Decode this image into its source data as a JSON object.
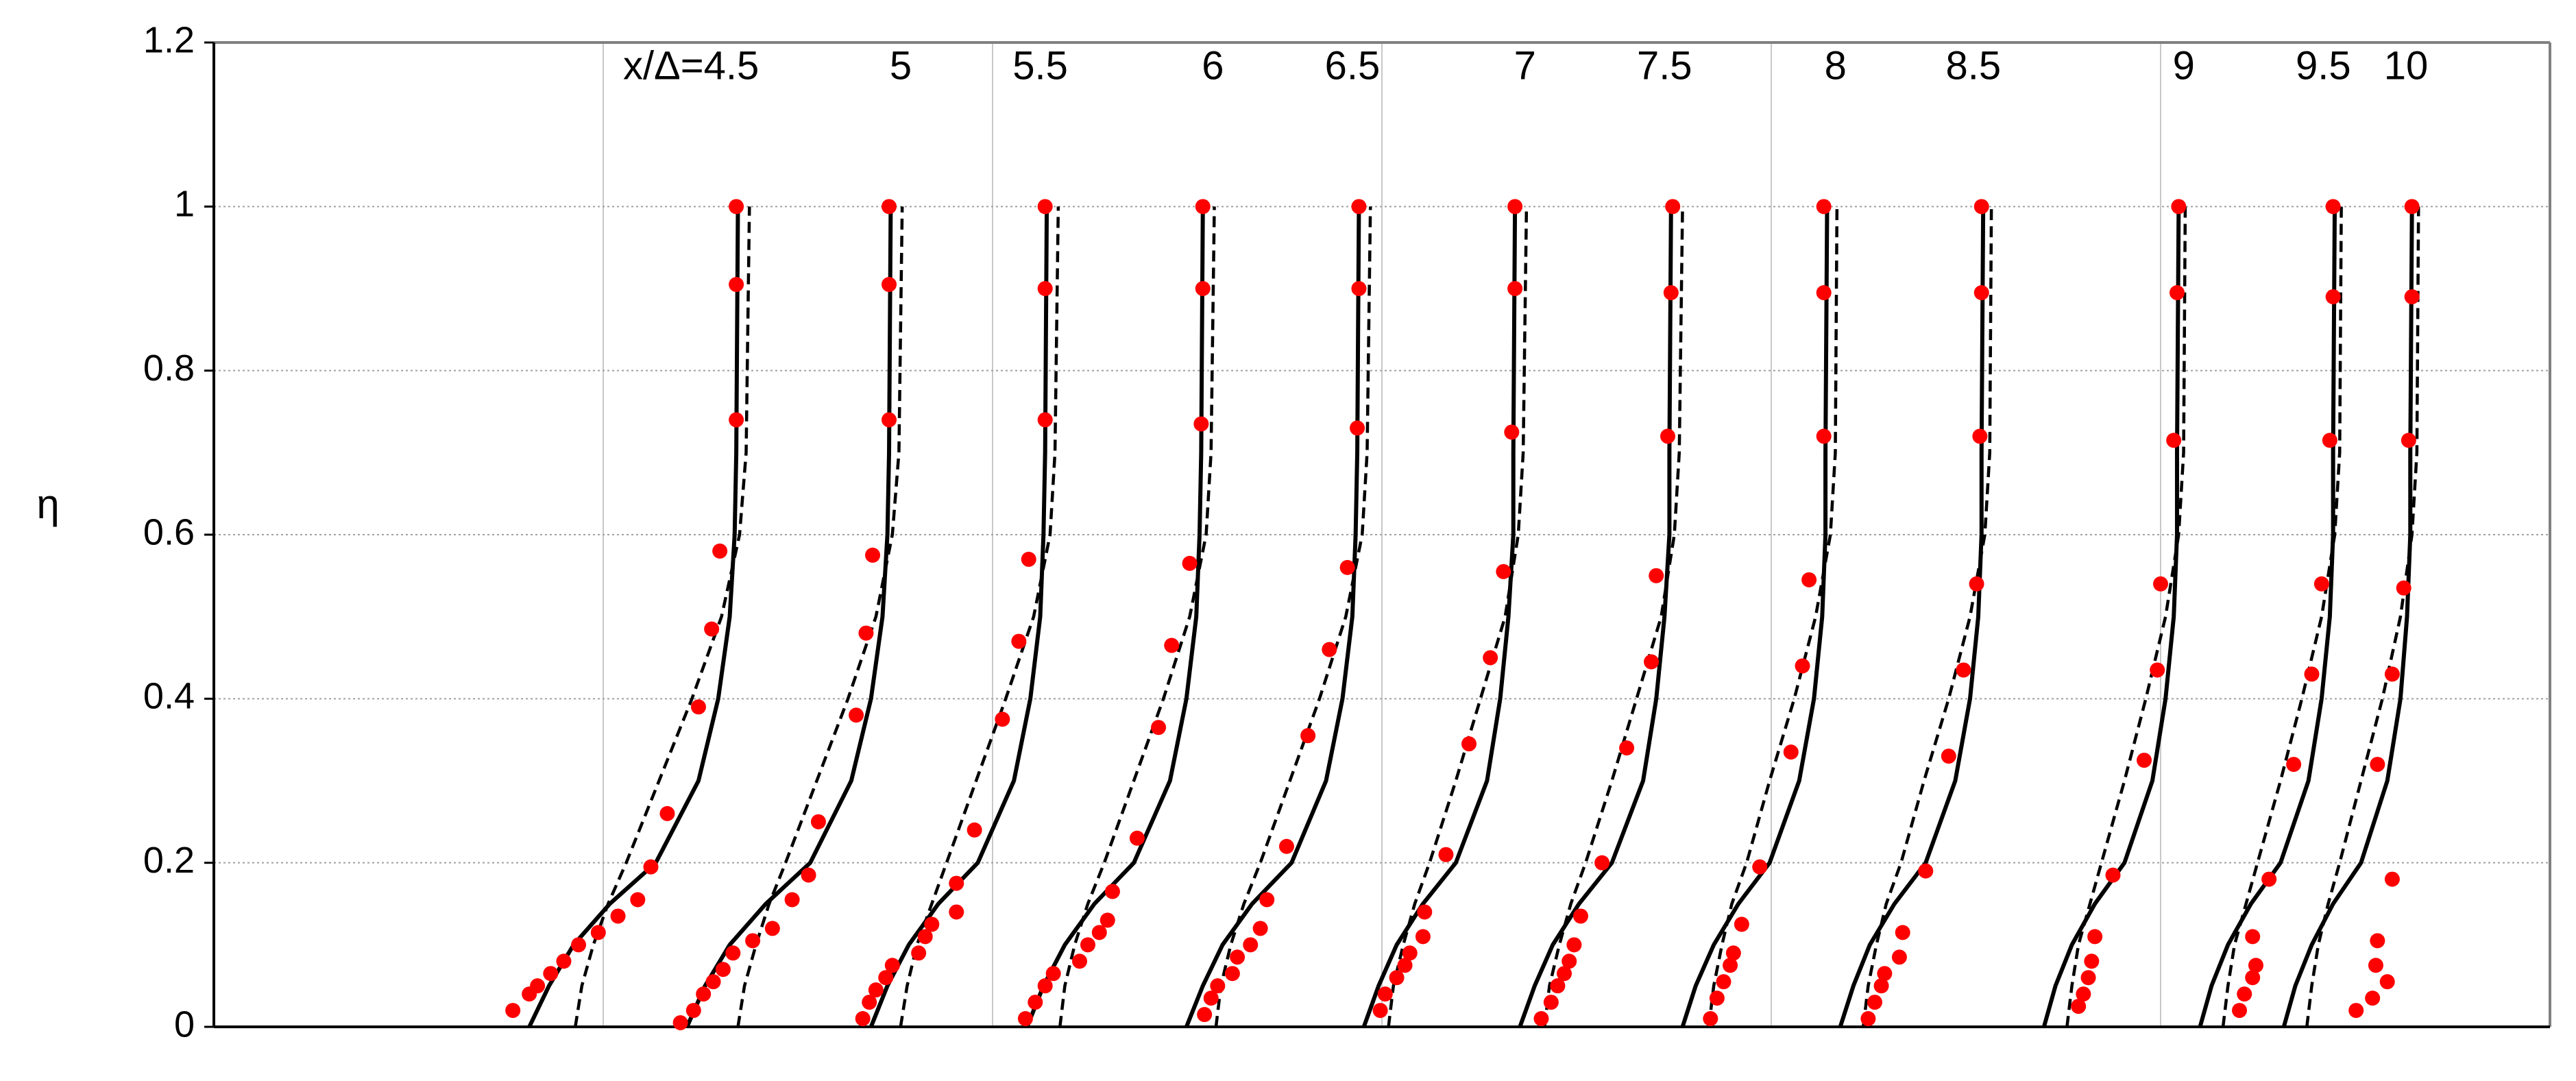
{
  "chart_data": {
    "type": "profiles",
    "ylabel": "η",
    "ylim": [
      0,
      1.2
    ],
    "yticks": [
      0,
      0.2,
      0.4,
      0.6,
      0.8,
      1,
      1.2
    ],
    "xlim": [
      0,
      1422
    ],
    "xgrid": [
      237,
      474,
      711,
      948,
      1185
    ],
    "grid": true,
    "line_color": "#000000",
    "point_color": "#ff0000",
    "eta": [
      0,
      0.05,
      0.1,
      0.15,
      0.2,
      0.3,
      0.4,
      0.5,
      0.6,
      0.7,
      1.0
    ],
    "profiles": [
      {
        "label": "x/Δ=4.5",
        "solid": [
          192,
          204,
          219,
          241,
          269,
          295,
          307,
          314,
          317,
          318,
          319
        ],
        "dashed": [
          220,
          224,
          231,
          240,
          251,
          271,
          291,
          309,
          320,
          324,
          326
        ],
        "points_x": [
          182,
          192,
          197,
          205,
          213,
          222,
          234,
          246,
          258,
          266,
          276,
          295,
          303,
          308,
          318,
          318,
          318
        ],
        "points_y": [
          0.02,
          0.04,
          0.05,
          0.065,
          0.08,
          0.1,
          0.115,
          0.135,
          0.155,
          0.195,
          0.26,
          0.39,
          0.485,
          0.58,
          0.74,
          0.905,
          1
        ]
      },
      {
        "label": "5",
        "solid": [
          288,
          299,
          314,
          336,
          363,
          388,
          400,
          407,
          410,
          411,
          412
        ],
        "dashed": [
          319,
          323,
          330,
          338,
          348,
          367,
          386,
          403,
          413,
          417,
          419
        ],
        "points_x": [
          284,
          292,
          298,
          304,
          310,
          316,
          328,
          340,
          352,
          362,
          368,
          391,
          397,
          401,
          411,
          411,
          411
        ],
        "points_y": [
          0.005,
          0.02,
          0.04,
          0.055,
          0.07,
          0.09,
          0.105,
          0.12,
          0.155,
          0.185,
          0.25,
          0.38,
          0.48,
          0.575,
          0.74,
          0.905,
          1
        ]
      },
      {
        "label": "5.5",
        "solid": [
          400,
          410,
          423,
          441,
          465,
          487,
          497,
          503,
          505,
          506,
          507
        ],
        "dashed": [
          418,
          422,
          428,
          437,
          446,
          464,
          482,
          499,
          509,
          512,
          514
        ],
        "points_x": [
          395,
          399,
          403,
          409,
          413,
          429,
          433,
          437,
          452,
          452,
          463,
          480,
          490,
          496,
          506,
          506,
          506
        ],
        "points_y": [
          0.01,
          0.03,
          0.045,
          0.06,
          0.075,
          0.09,
          0.11,
          0.125,
          0.14,
          0.175,
          0.24,
          0.375,
          0.47,
          0.57,
          0.74,
          0.9,
          1
        ]
      },
      {
        "label": "6",
        "solid": [
          495,
          505,
          518,
          536,
          560,
          582,
          592,
          598,
          600,
          601,
          602
        ],
        "dashed": [
          515,
          518,
          524,
          532,
          542,
          560,
          578,
          594,
          604,
          607,
          609
        ],
        "points_x": [
          494,
          500,
          506,
          511,
          527,
          532,
          539,
          544,
          547,
          562,
          575,
          583,
          594,
          601,
          602,
          602
        ],
        "points_y": [
          0.01,
          0.03,
          0.05,
          0.065,
          0.08,
          0.1,
          0.115,
          0.13,
          0.165,
          0.23,
          0.365,
          0.465,
          0.565,
          0.735,
          0.9,
          1
        ]
      },
      {
        "label": "6.5",
        "solid": [
          592,
          602,
          614,
          632,
          656,
          677,
          687,
          693,
          695,
          696,
          697
        ],
        "dashed": [
          610,
          613,
          619,
          627,
          637,
          655,
          673,
          689,
          699,
          702,
          704
        ],
        "points_x": [
          603,
          607,
          611,
          620,
          623,
          631,
          637,
          641,
          653,
          666,
          679,
          690,
          696,
          697,
          697
        ],
        "points_y": [
          0.015,
          0.035,
          0.05,
          0.065,
          0.085,
          0.1,
          0.12,
          0.155,
          0.22,
          0.355,
          0.46,
          0.56,
          0.73,
          0.9,
          1
        ]
      },
      {
        "label": "7",
        "solid": [
          700,
          709,
          720,
          736,
          756,
          775,
          783,
          788,
          791,
          791,
          792
        ],
        "dashed": [
          715,
          718,
          724,
          731,
          740,
          756,
          771,
          786,
          794,
          797,
          799
        ],
        "points_x": [
          710,
          713,
          720,
          725,
          728,
          736,
          737,
          750,
          764,
          777,
          785,
          790,
          792,
          792
        ],
        "points_y": [
          0.02,
          0.04,
          0.06,
          0.075,
          0.09,
          0.11,
          0.14,
          0.21,
          0.345,
          0.45,
          0.555,
          0.725,
          0.9,
          1
        ]
      },
      {
        "label": "7.5",
        "solid": [
          795,
          804,
          815,
          831,
          851,
          870,
          878,
          883,
          886,
          886,
          887
        ],
        "dashed": [
          810,
          813,
          819,
          826,
          835,
          851,
          866,
          881,
          889,
          892,
          894
        ],
        "points_x": [
          808,
          814,
          818,
          822,
          825,
          828,
          832,
          845,
          860,
          875,
          878,
          885,
          887,
          888
        ],
        "points_y": [
          0.01,
          0.03,
          0.05,
          0.065,
          0.08,
          0.1,
          0.135,
          0.2,
          0.34,
          0.445,
          0.55,
          0.72,
          0.895,
          1
        ]
      },
      {
        "label": "8",
        "solid": [
          894,
          902,
          913,
          928,
          947,
          965,
          974,
          979,
          981,
          981,
          982
        ],
        "dashed": [
          910,
          913,
          918,
          924,
          933,
          947,
          962,
          975,
          984,
          987,
          988
        ],
        "points_x": [
          911,
          915,
          919,
          923,
          925,
          930,
          941,
          960,
          967,
          971,
          980,
          980,
          980
        ],
        "points_y": [
          0.01,
          0.035,
          0.055,
          0.075,
          0.09,
          0.125,
          0.195,
          0.335,
          0.44,
          0.545,
          0.72,
          0.895,
          1
        ]
      },
      {
        "label": "8.5",
        "solid": [
          990,
          998,
          1008,
          1023,
          1042,
          1060,
          1069,
          1074,
          1076,
          1076,
          1077
        ],
        "dashed": [
          1004,
          1007,
          1012,
          1018,
          1027,
          1041,
          1056,
          1069,
          1078,
          1081,
          1082
        ],
        "points_x": [
          1007,
          1011,
          1015,
          1017,
          1026,
          1028,
          1042,
          1056,
          1065,
          1073,
          1075,
          1076,
          1076
        ],
        "points_y": [
          0.01,
          0.03,
          0.05,
          0.065,
          0.085,
          0.115,
          0.19,
          0.33,
          0.435,
          0.54,
          0.72,
          0.895,
          1
        ]
      },
      {
        "label": "9",
        "solid": [
          1114,
          1121,
          1131,
          1145,
          1163,
          1180,
          1188,
          1193,
          1195,
          1195,
          1196
        ],
        "dashed": [
          1128,
          1131,
          1135,
          1142,
          1149,
          1163,
          1176,
          1188,
          1196,
          1199,
          1200
        ],
        "points_x": [
          1135,
          1138,
          1141,
          1143,
          1145,
          1156,
          1175,
          1183,
          1185,
          1193,
          1195,
          1196
        ],
        "points_y": [
          0.025,
          0.04,
          0.06,
          0.08,
          0.11,
          0.185,
          0.325,
          0.435,
          0.54,
          0.715,
          0.895,
          1
        ]
      },
      {
        "label": "9.5",
        "solid": [
          1209,
          1216,
          1226,
          1240,
          1258,
          1275,
          1283,
          1288,
          1290,
          1290,
          1291
        ],
        "dashed": [
          1223,
          1226,
          1230,
          1237,
          1244,
          1258,
          1271,
          1283,
          1291,
          1294,
          1295
        ],
        "points_x": [
          1233,
          1236,
          1241,
          1243,
          1241,
          1251,
          1266,
          1277,
          1283,
          1288,
          1290,
          1290
        ],
        "points_y": [
          0.02,
          0.04,
          0.06,
          0.075,
          0.11,
          0.18,
          0.32,
          0.43,
          0.54,
          0.715,
          0.89,
          1
        ]
      },
      {
        "label": "10",
        "solid": [
          1260,
          1267,
          1277,
          1290,
          1307,
          1323,
          1331,
          1335,
          1337,
          1337,
          1338
        ],
        "dashed": [
          1274,
          1277,
          1281,
          1287,
          1294,
          1307,
          1320,
          1331,
          1338,
          1341,
          1342
        ],
        "points_x": [
          1304,
          1314,
          1323,
          1316,
          1317,
          1326,
          1317,
          1326,
          1333,
          1336,
          1338,
          1338
        ],
        "points_y": [
          0.02,
          0.035,
          0.055,
          0.075,
          0.105,
          0.18,
          0.32,
          0.43,
          0.535,
          0.715,
          0.89,
          1
        ]
      }
    ]
  }
}
